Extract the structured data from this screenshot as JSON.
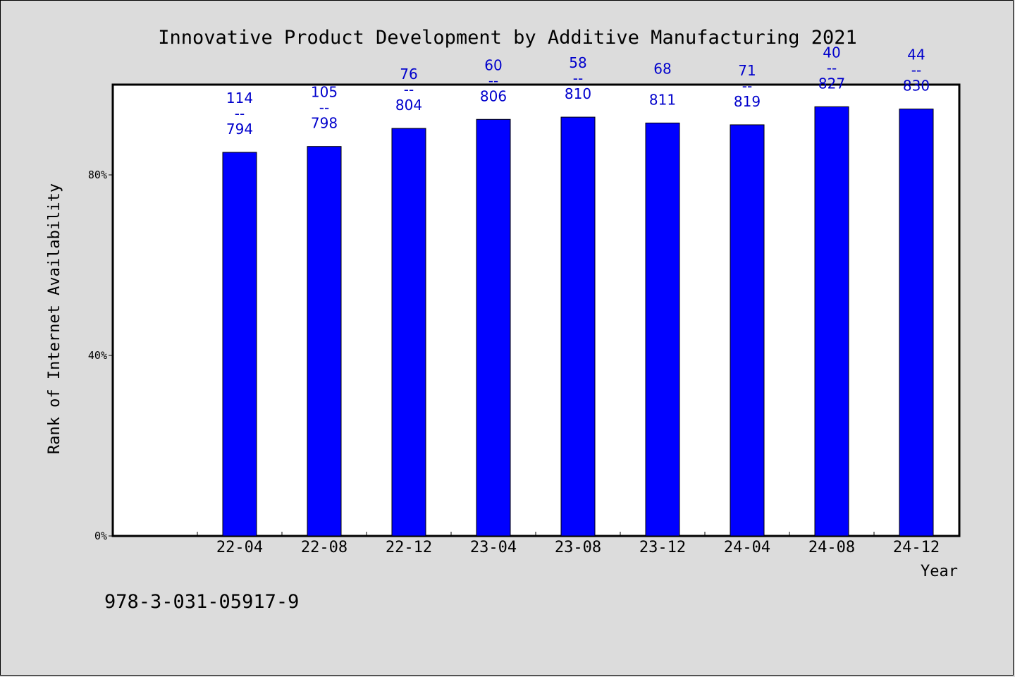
{
  "chart_data": {
    "type": "bar",
    "title": "Innovative Product Development by Additive Manufacturing 2021",
    "xlabel": "Year",
    "ylabel": "Rank of Internet Availability",
    "categories": [
      "22-04",
      "22-08",
      "22-12",
      "23-04",
      "23-08",
      "23-12",
      "24-04",
      "24-08",
      "24-12"
    ],
    "values": [
      85,
      86.3,
      90.3,
      92.3,
      92.8,
      91.5,
      91.1,
      95.1,
      94.6
    ],
    "annotations": [
      [
        "114",
        "--",
        "794"
      ],
      [
        "105",
        "--",
        "798"
      ],
      [
        "76",
        "--",
        "804"
      ],
      [
        "60",
        "--",
        "806"
      ],
      [
        "58",
        "--",
        "810"
      ],
      [
        "68",
        "",
        "811"
      ],
      [
        "71",
        "--",
        "819"
      ],
      [
        "40",
        "--",
        "827"
      ],
      [
        "44",
        "--",
        "830"
      ]
    ],
    "yticks": [
      {
        "value": 0,
        "label": "0%"
      },
      {
        "value": 40,
        "label": "40%"
      },
      {
        "value": 80,
        "label": "80%"
      }
    ],
    "ylim": [
      0,
      100
    ],
    "grid": false,
    "bar_color": "#0000ff",
    "label_color": "#0000cc",
    "background_color": "#dcdcdc",
    "plot_background": "#ffffff"
  },
  "footer": {
    "text": "978-3-031-05917-9"
  }
}
